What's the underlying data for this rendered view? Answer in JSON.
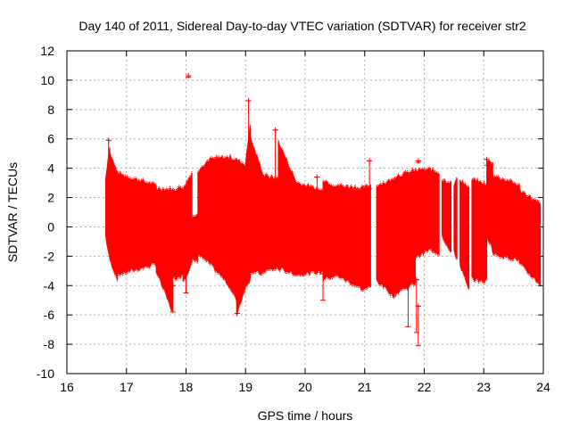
{
  "chart_data": {
    "type": "scatter",
    "style": "error-bars",
    "title": "Day 140 of 2011, Sidereal Day-to-day VTEC variation (SDTVAR) for receiver str2",
    "xlabel": "GPS time / hours",
    "ylabel": "SDTVAR / TECUs",
    "xlim": [
      16,
      24
    ],
    "ylim": [
      -10,
      12
    ],
    "xticks": [
      16,
      17,
      18,
      19,
      20,
      21,
      22,
      23,
      24
    ],
    "yticks": [
      -10,
      -8,
      -6,
      -4,
      -2,
      0,
      2,
      4,
      6,
      8,
      10,
      12
    ],
    "grid": true,
    "color": "#ff0000",
    "band_segments": [
      {
        "x": [
          16.65,
          16.72
        ],
        "upper": [
          3.2,
          5.5
        ],
        "lower": [
          -0.5,
          -2.2
        ]
      },
      {
        "x": [
          16.72,
          16.85
        ],
        "upper": [
          5.0,
          3.6
        ],
        "lower": [
          -2.2,
          -3.5
        ]
      },
      {
        "x": [
          16.85,
          17.5
        ],
        "upper": [
          3.6,
          2.8
        ],
        "lower": [
          -3.2,
          -2.5
        ]
      },
      {
        "x": [
          17.5,
          17.78
        ],
        "upper": [
          2.6,
          2.5
        ],
        "lower": [
          -3.0,
          -5.8
        ]
      },
      {
        "x": [
          17.78,
          17.95
        ],
        "upper": [
          2.5,
          2.7
        ],
        "lower": [
          -3.5,
          -3.2
        ]
      },
      {
        "x": [
          17.95,
          18.1
        ],
        "upper": [
          2.5,
          3.7
        ],
        "lower": [
          -3.6,
          -2.5
        ]
      },
      {
        "x": [
          18.1,
          18.2
        ],
        "upper": [
          0.5,
          1.0
        ],
        "lower": [
          -2.2,
          -2.3
        ]
      },
      {
        "x": [
          18.2,
          18.4
        ],
        "upper": [
          3.8,
          4.5
        ],
        "lower": [
          -1.8,
          -2.5
        ]
      },
      {
        "x": [
          18.4,
          18.7
        ],
        "upper": [
          4.6,
          4.7
        ],
        "lower": [
          -2.5,
          -3.8
        ]
      },
      {
        "x": [
          18.7,
          18.85
        ],
        "upper": [
          4.7,
          4.6
        ],
        "lower": [
          -3.8,
          -5.0
        ]
      },
      {
        "x": [
          18.85,
          19.0
        ],
        "upper": [
          4.5,
          4.2
        ],
        "lower": [
          -5.9,
          -4.0
        ]
      },
      {
        "x": [
          19.0,
          19.08
        ],
        "upper": [
          4.2,
          7.0
        ],
        "lower": [
          -4.0,
          -3.5
        ]
      },
      {
        "x": [
          19.08,
          19.3
        ],
        "upper": [
          6.0,
          3.5
        ],
        "lower": [
          -3.0,
          -3.2
        ]
      },
      {
        "x": [
          19.3,
          19.55
        ],
        "upper": [
          3.5,
          3.2
        ],
        "lower": [
          -3.0,
          -2.8
        ]
      },
      {
        "x": [
          19.55,
          19.85
        ],
        "upper": [
          5.8,
          3.0
        ],
        "lower": [
          -2.8,
          -3.2
        ]
      },
      {
        "x": [
          19.85,
          20.3
        ],
        "upper": [
          3.0,
          2.4
        ],
        "lower": [
          -3.2,
          -3.0
        ]
      },
      {
        "x": [
          20.3,
          20.55
        ],
        "upper": [
          3.2,
          2.7
        ],
        "lower": [
          -3.5,
          -3.3
        ]
      },
      {
        "x": [
          20.55,
          20.95
        ],
        "upper": [
          2.8,
          2.6
        ],
        "lower": [
          -3.3,
          -4.2
        ]
      },
      {
        "x": [
          20.95,
          21.1
        ],
        "upper": [
          2.6,
          2.8
        ],
        "lower": [
          -4.2,
          -4.1
        ]
      },
      {
        "x": [
          21.2,
          21.5
        ],
        "upper": [
          2.8,
          3.2
        ],
        "lower": [
          -3.6,
          -4.7
        ]
      },
      {
        "x": [
          21.5,
          21.85
        ],
        "upper": [
          3.4,
          3.8
        ],
        "lower": [
          -4.5,
          -3.8
        ]
      },
      {
        "x": [
          21.85,
          22.1
        ],
        "upper": [
          3.8,
          3.9
        ],
        "lower": [
          -2.0,
          -1.5
        ]
      },
      {
        "x": [
          22.1,
          22.25
        ],
        "upper": [
          3.8,
          3.7
        ],
        "lower": [
          -1.5,
          -1.8
        ]
      },
      {
        "x": [
          22.3,
          22.45
        ],
        "upper": [
          3.2,
          3.0
        ],
        "lower": [
          -0.5,
          -1.8
        ]
      },
      {
        "x": [
          22.5,
          22.55
        ],
        "upper": [
          2.8,
          3.2
        ],
        "lower": [
          -1.5,
          -2.2
        ]
      },
      {
        "x": [
          22.6,
          22.75
        ],
        "upper": [
          3.2,
          2.6
        ],
        "lower": [
          -2.5,
          -4.3
        ]
      },
      {
        "x": [
          22.8,
          23.05
        ],
        "upper": [
          3.2,
          2.8
        ],
        "lower": [
          -3.5,
          -3.7
        ]
      },
      {
        "x": [
          23.05,
          23.15
        ],
        "upper": [
          4.5,
          4.3
        ],
        "lower": [
          -0.5,
          -1.5
        ]
      },
      {
        "x": [
          23.15,
          23.6
        ],
        "upper": [
          3.5,
          2.8
        ],
        "lower": [
          -1.8,
          -2.2
        ]
      },
      {
        "x": [
          23.6,
          23.95
        ],
        "upper": [
          2.5,
          1.5
        ],
        "lower": [
          -2.5,
          -3.9
        ]
      }
    ],
    "error_bars": [
      {
        "x": 16.7,
        "low": 3.0,
        "high": 5.9
      },
      {
        "x": 18.04,
        "low": 10.2,
        "high": 10.3
      },
      {
        "x": 19.05,
        "low": 4.2,
        "high": 8.6
      },
      {
        "x": 19.5,
        "low": 3.2,
        "high": 6.6
      },
      {
        "x": 21.08,
        "low": 2.6,
        "high": 4.5
      },
      {
        "x": 20.2,
        "low": 2.5,
        "high": 3.4
      },
      {
        "x": 21.73,
        "low": -6.8,
        "high": -2.5
      },
      {
        "x": 21.87,
        "low": -7.2,
        "high": -3.6
      },
      {
        "x": 21.9,
        "low": -8.1,
        "high": -5.4
      },
      {
        "x": 21.9,
        "low": 4.4,
        "high": 4.5
      },
      {
        "x": 20.3,
        "low": -5.0,
        "high": -3.2
      },
      {
        "x": 17.78,
        "low": -5.8,
        "high": -4.0
      },
      {
        "x": 18.86,
        "low": -5.9,
        "high": -4.5
      },
      {
        "x": 18.0,
        "low": -4.5,
        "high": -2.5
      },
      {
        "x": 23.05,
        "low": 4.2,
        "high": 4.6
      }
    ]
  }
}
